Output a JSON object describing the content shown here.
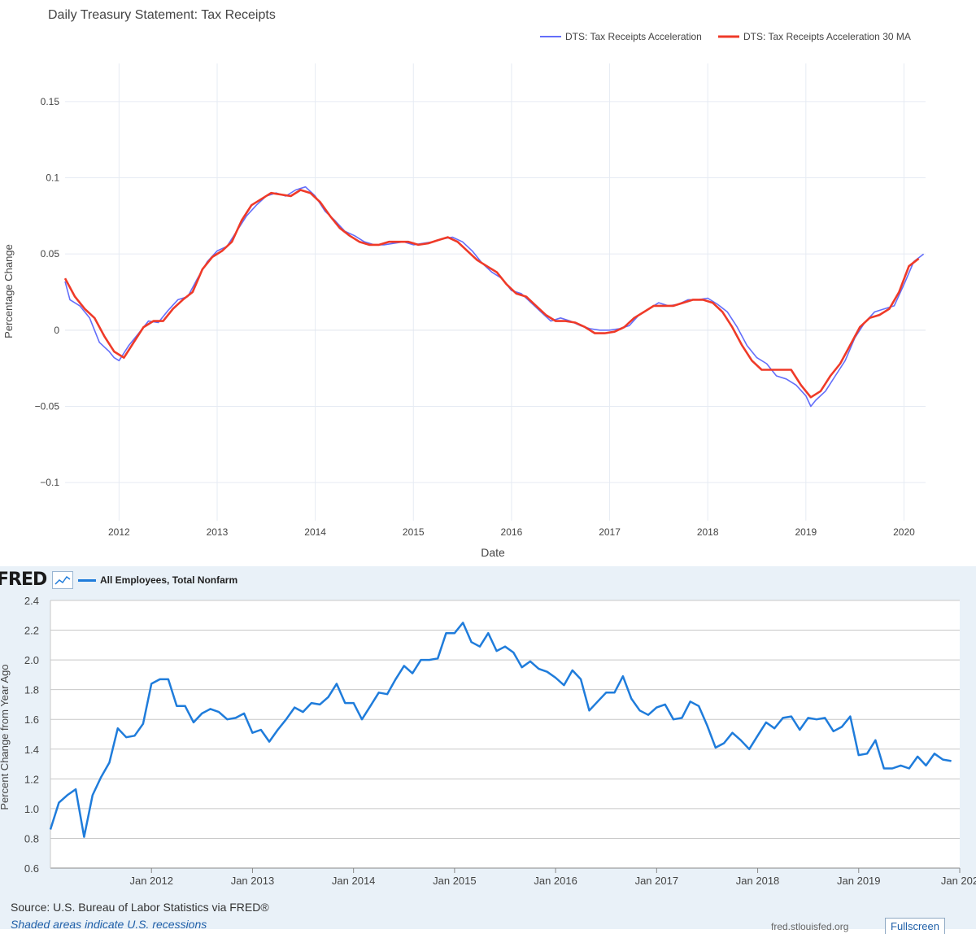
{
  "chart_data": [
    {
      "type": "line",
      "title": "Daily Treasury Statement: Tax Receipts",
      "xlabel": "Date",
      "ylabel": "Percentage Change",
      "xlim": [
        2011.45,
        2020.22
      ],
      "ylim": [
        -0.125,
        0.175
      ],
      "x_ticks": [
        2012,
        2013,
        2014,
        2015,
        2016,
        2017,
        2018,
        2019,
        2020
      ],
      "y_ticks": [
        -0.1,
        -0.05,
        0,
        0.05,
        0.1,
        0.15
      ],
      "y_tick_labels": [
        "−0.1",
        "−0.05",
        "0",
        "0.05",
        "0.1",
        "0.15"
      ],
      "grid": true,
      "legend_position": "top-right",
      "series": [
        {
          "name": "DTS: Tax Receipts Acceleration",
          "color": "#636efa",
          "x": [
            2011.45,
            2011.5,
            2011.6,
            2011.7,
            2011.8,
            2011.9,
            2011.95,
            2012.0,
            2012.1,
            2012.2,
            2012.3,
            2012.4,
            2012.5,
            2012.6,
            2012.7,
            2012.8,
            2012.9,
            2013.0,
            2013.1,
            2013.2,
            2013.3,
            2013.4,
            2013.5,
            2013.6,
            2013.7,
            2013.8,
            2013.9,
            2014.0,
            2014.1,
            2014.2,
            2014.3,
            2014.4,
            2014.5,
            2014.6,
            2014.7,
            2014.8,
            2014.9,
            2015.0,
            2015.1,
            2015.2,
            2015.3,
            2015.4,
            2015.5,
            2015.6,
            2015.7,
            2015.8,
            2015.9,
            2016.0,
            2016.1,
            2016.2,
            2016.3,
            2016.4,
            2016.5,
            2016.6,
            2016.7,
            2016.8,
            2016.9,
            2017.0,
            2017.1,
            2017.2,
            2017.3,
            2017.4,
            2017.5,
            2017.6,
            2017.7,
            2017.8,
            2017.9,
            2018.0,
            2018.1,
            2018.2,
            2018.3,
            2018.4,
            2018.5,
            2018.6,
            2018.7,
            2018.8,
            2018.9,
            2019.0,
            2019.05,
            2019.1,
            2019.2,
            2019.3,
            2019.4,
            2019.5,
            2019.6,
            2019.7,
            2019.8,
            2019.9,
            2020.0,
            2020.1,
            2020.2
          ],
          "values": [
            0.032,
            0.02,
            0.016,
            0.008,
            -0.008,
            -0.014,
            -0.018,
            -0.02,
            -0.01,
            -0.002,
            0.006,
            0.005,
            0.013,
            0.02,
            0.022,
            0.034,
            0.045,
            0.052,
            0.055,
            0.065,
            0.075,
            0.082,
            0.088,
            0.09,
            0.088,
            0.092,
            0.094,
            0.088,
            0.078,
            0.072,
            0.065,
            0.062,
            0.058,
            0.056,
            0.056,
            0.057,
            0.058,
            0.056,
            0.057,
            0.058,
            0.06,
            0.061,
            0.058,
            0.052,
            0.044,
            0.038,
            0.034,
            0.026,
            0.024,
            0.018,
            0.012,
            0.006,
            0.008,
            0.006,
            0.003,
            0.001,
            0.0,
            0.0,
            0.001,
            0.003,
            0.01,
            0.014,
            0.018,
            0.016,
            0.017,
            0.02,
            0.02,
            0.021,
            0.017,
            0.012,
            0.002,
            -0.01,
            -0.018,
            -0.022,
            -0.03,
            -0.032,
            -0.036,
            -0.043,
            -0.05,
            -0.046,
            -0.04,
            -0.03,
            -0.02,
            -0.005,
            0.005,
            0.012,
            0.014,
            0.016,
            0.03,
            0.045,
            0.05
          ]
        },
        {
          "name": "DTS: Tax Receipts Acceleration 30 MA",
          "color": "#ef3a28",
          "x": [
            2011.45,
            2011.55,
            2011.65,
            2011.75,
            2011.85,
            2011.95,
            2012.05,
            2012.15,
            2012.25,
            2012.35,
            2012.45,
            2012.55,
            2012.65,
            2012.75,
            2012.85,
            2012.95,
            2013.05,
            2013.15,
            2013.25,
            2013.35,
            2013.45,
            2013.55,
            2013.65,
            2013.75,
            2013.85,
            2013.95,
            2014.05,
            2014.15,
            2014.25,
            2014.35,
            2014.45,
            2014.55,
            2014.65,
            2014.75,
            2014.85,
            2014.95,
            2015.05,
            2015.15,
            2015.25,
            2015.35,
            2015.45,
            2015.55,
            2015.65,
            2015.75,
            2015.85,
            2015.95,
            2016.05,
            2016.15,
            2016.25,
            2016.35,
            2016.45,
            2016.55,
            2016.65,
            2016.75,
            2016.85,
            2016.95,
            2017.05,
            2017.15,
            2017.25,
            2017.35,
            2017.45,
            2017.55,
            2017.65,
            2017.75,
            2017.85,
            2017.95,
            2018.05,
            2018.15,
            2018.25,
            2018.35,
            2018.45,
            2018.55,
            2018.65,
            2018.75,
            2018.85,
            2018.95,
            2019.05,
            2019.15,
            2019.25,
            2019.35,
            2019.45,
            2019.55,
            2019.65,
            2019.75,
            2019.85,
            2019.95,
            2020.05,
            2020.15
          ],
          "values": [
            0.034,
            0.022,
            0.014,
            0.008,
            -0.004,
            -0.014,
            -0.018,
            -0.008,
            0.002,
            0.006,
            0.006,
            0.014,
            0.02,
            0.025,
            0.04,
            0.048,
            0.052,
            0.058,
            0.072,
            0.082,
            0.086,
            0.09,
            0.089,
            0.088,
            0.092,
            0.09,
            0.084,
            0.075,
            0.067,
            0.062,
            0.058,
            0.056,
            0.056,
            0.058,
            0.058,
            0.058,
            0.056,
            0.057,
            0.059,
            0.061,
            0.058,
            0.052,
            0.046,
            0.042,
            0.038,
            0.03,
            0.024,
            0.022,
            0.016,
            0.01,
            0.006,
            0.006,
            0.005,
            0.002,
            -0.002,
            -0.002,
            -0.001,
            0.002,
            0.008,
            0.012,
            0.016,
            0.016,
            0.016,
            0.018,
            0.02,
            0.02,
            0.018,
            0.012,
            0.002,
            -0.01,
            -0.02,
            -0.026,
            -0.026,
            -0.026,
            -0.026,
            -0.036,
            -0.044,
            -0.04,
            -0.03,
            -0.022,
            -0.01,
            0.002,
            0.008,
            0.01,
            0.014,
            0.025,
            0.042,
            0.047
          ]
        }
      ]
    },
    {
      "type": "line",
      "title": "",
      "xlabel": "",
      "ylabel": "Percent Change from Year Ago",
      "legend_position": "top-left",
      "xlim": [
        2011.0,
        2020.0
      ],
      "ylim": [
        0.6,
        2.4
      ],
      "x_ticks": [
        2012,
        2013,
        2014,
        2015,
        2016,
        2017,
        2018,
        2019,
        2020
      ],
      "x_tick_labels": [
        "Jan 2012",
        "Jan 2013",
        "Jan 2014",
        "Jan 2015",
        "Jan 2016",
        "Jan 2017",
        "Jan 2018",
        "Jan 2019",
        "Jan 202"
      ],
      "y_ticks": [
        0.6,
        0.8,
        1.0,
        1.2,
        1.4,
        1.6,
        1.8,
        2.0,
        2.2,
        2.4
      ],
      "y_tick_labels": [
        "0.6",
        "0.8",
        "1.0",
        "1.2",
        "1.4",
        "1.6",
        "1.8",
        "2.0",
        "2.2",
        "2.4"
      ],
      "grid": true,
      "series": [
        {
          "name": "All Employees, Total Nonfarm",
          "color": "#1f7cdb",
          "x_start": 2011.0,
          "x_step": 0.08333,
          "values": [
            0.86,
            1.04,
            1.09,
            1.13,
            0.81,
            1.09,
            1.21,
            1.31,
            1.54,
            1.48,
            1.49,
            1.57,
            1.84,
            1.87,
            1.87,
            1.69,
            1.69,
            1.58,
            1.64,
            1.67,
            1.65,
            1.6,
            1.61,
            1.64,
            1.51,
            1.53,
            1.45,
            1.53,
            1.6,
            1.68,
            1.65,
            1.71,
            1.7,
            1.75,
            1.84,
            1.71,
            1.71,
            1.6,
            1.69,
            1.78,
            1.77,
            1.87,
            1.96,
            1.91,
            2.0,
            2.0,
            2.01,
            2.18,
            2.18,
            2.25,
            2.12,
            2.09,
            2.18,
            2.06,
            2.09,
            2.05,
            1.95,
            1.99,
            1.94,
            1.92,
            1.88,
            1.83,
            1.93,
            1.87,
            1.66,
            1.72,
            1.78,
            1.78,
            1.89,
            1.74,
            1.66,
            1.63,
            1.68,
            1.7,
            1.6,
            1.61,
            1.72,
            1.69,
            1.56,
            1.41,
            1.44,
            1.51,
            1.46,
            1.4,
            1.49,
            1.58,
            1.54,
            1.61,
            1.62,
            1.53,
            1.61,
            1.6,
            1.61,
            1.52,
            1.55,
            1.62,
            1.36,
            1.37,
            1.46,
            1.27,
            1.27,
            1.29,
            1.27,
            1.35,
            1.29,
            1.37,
            1.33,
            1.32
          ]
        }
      ]
    }
  ],
  "footer": {
    "logo": "FRED",
    "source": "Source: U.S. Bureau of Labor Statistics via FRED®",
    "shaded": "Shaded areas indicate U.S. recessions",
    "link": "fred.stlouisfed.org",
    "fullscreen": "Fullscreen"
  }
}
